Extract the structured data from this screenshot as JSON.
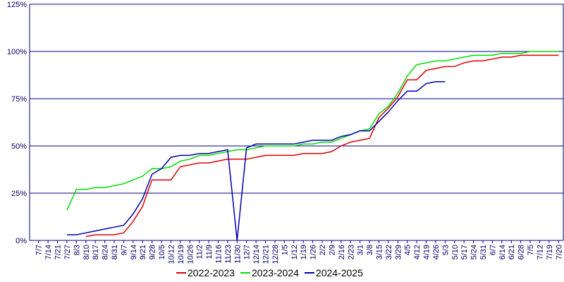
{
  "chart_data": {
    "type": "line",
    "categories": [
      "7/7",
      "7/14",
      "7/21",
      "7/27",
      "8/3",
      "8/10",
      "8/17",
      "8/24",
      "8/31",
      "9/7",
      "9/14",
      "9/21",
      "9/28",
      "10/5",
      "10/12",
      "10/19",
      "10/26",
      "11/2",
      "11/9",
      "11/16",
      "11/23",
      "11/30",
      "12/7",
      "12/14",
      "12/21",
      "12/28",
      "1/5",
      "1/12",
      "1/19",
      "1/26",
      "2/2",
      "2/9",
      "2/16",
      "2/23",
      "3/1",
      "3/8",
      "3/15",
      "3/22",
      "3/29",
      "4/5",
      "4/12",
      "4/19",
      "4/26",
      "5/3",
      "5/10",
      "5/17",
      "5/24",
      "5/31",
      "6/7",
      "6/14",
      "6/21",
      "6/28",
      "7/5",
      "7/12",
      "7/19",
      "7/20"
    ],
    "series": [
      {
        "name": "2022-2023",
        "color": "#dd0000",
        "values": [
          null,
          null,
          null,
          null,
          null,
          2,
          3,
          3,
          3,
          4,
          10,
          18,
          32,
          32,
          32,
          39,
          40,
          41,
          41,
          42,
          43,
          43,
          43,
          44,
          45,
          45,
          45,
          45,
          46,
          46,
          46,
          47,
          50,
          52,
          53,
          54,
          65,
          70,
          76,
          85,
          85,
          90,
          91,
          92,
          92,
          94,
          95,
          95,
          96,
          97,
          97,
          98,
          98,
          98,
          98,
          98
        ]
      },
      {
        "name": "2023-2024",
        "color": "#00dd00",
        "values": [
          null,
          null,
          null,
          16,
          27,
          27,
          28,
          28,
          29,
          30,
          32,
          34,
          38,
          38,
          39,
          42,
          43,
          45,
          45,
          46,
          47,
          48,
          48,
          49,
          50,
          50,
          50,
          50,
          51,
          51,
          52,
          52,
          54,
          56,
          58,
          59,
          67,
          71,
          78,
          87,
          93,
          94,
          95,
          95,
          96,
          97,
          98,
          98,
          98,
          99,
          99,
          99,
          100,
          100,
          100,
          100
        ]
      },
      {
        "name": "2024-2025",
        "color": "#0000aa",
        "values": [
          null,
          null,
          null,
          3,
          3,
          4,
          5,
          6,
          7,
          8,
          14,
          22,
          35,
          38,
          44,
          45,
          45,
          46,
          46,
          47,
          48,
          0,
          49,
          51,
          51,
          51,
          51,
          51,
          52,
          53,
          53,
          53,
          55,
          56,
          58,
          58,
          63,
          68,
          74,
          79,
          79,
          83,
          84,
          84,
          null,
          null,
          null,
          null,
          null,
          null,
          null,
          null,
          null,
          null,
          null,
          null
        ]
      }
    ],
    "ylim": [
      0,
      125
    ],
    "yticks": [
      {
        "value": 0,
        "label": "0%"
      },
      {
        "value": 25,
        "label": "25%"
      },
      {
        "value": 50,
        "label": "50%"
      },
      {
        "value": 75,
        "label": "75%"
      },
      {
        "value": 100,
        "label": "100%"
      },
      {
        "value": 125,
        "label": "125%"
      }
    ],
    "grid": true,
    "legend": "bottom"
  }
}
